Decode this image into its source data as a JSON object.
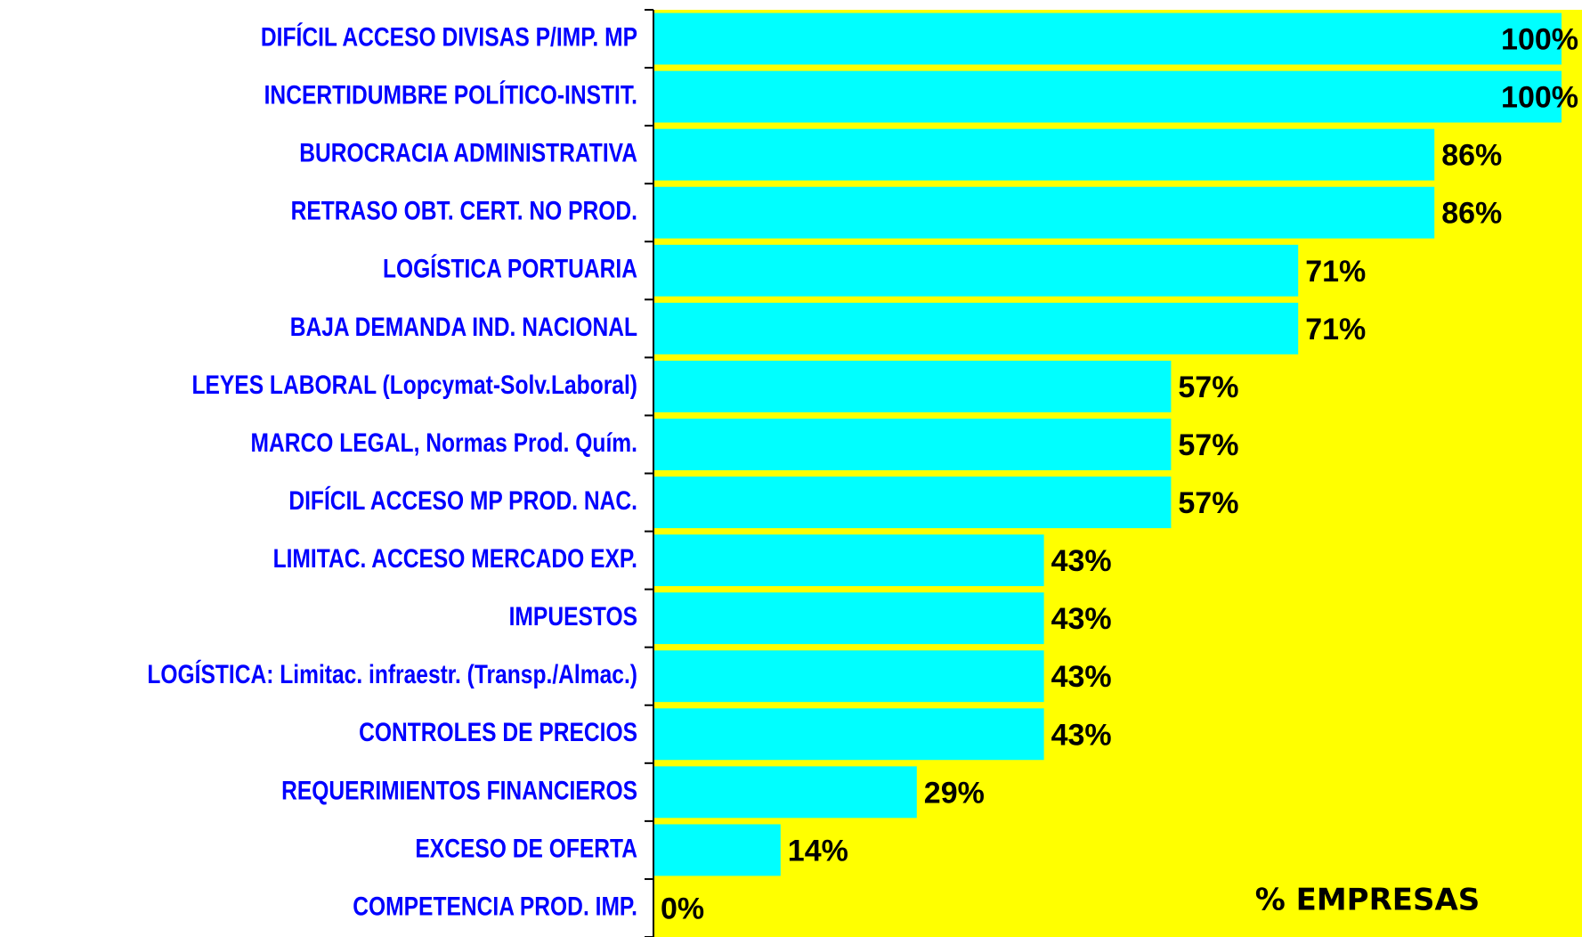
{
  "chart_data": {
    "type": "bar",
    "orientation": "horizontal",
    "categories": [
      "DIFÍCIL ACCESO DIVISAS P/IMP. MP",
      "INCERTIDUMBRE POLÍTICO-INSTIT.",
      "BUROCRACIA ADMINISTRATIVA",
      "RETRASO OBT. CERT. NO PROD.",
      "LOGÍSTICA PORTUARIA",
      "BAJA DEMANDA IND. NACIONAL",
      "LEYES LABORAL (Lopcymat-Solv.Laboral)",
      "MARCO LEGAL, Normas Prod. Quím.",
      "DIFÍCIL ACCESO MP PROD. NAC.",
      "LIMITAC. ACCESO MERCADO EXP.",
      "IMPUESTOS",
      "LOGÍSTICA: Limitac. infraestr. (Transp./Almac.)",
      "CONTROLES DE PRECIOS",
      "REQUERIMIENTOS FINANCIEROS",
      "EXCESO DE OFERTA",
      "COMPETENCIA PROD. IMP."
    ],
    "values": [
      100,
      100,
      86,
      86,
      71,
      71,
      57,
      57,
      57,
      43,
      43,
      43,
      43,
      29,
      14,
      0
    ],
    "value_labels": [
      "100%",
      "100%",
      "86%",
      "86%",
      "71%",
      "71%",
      "57%",
      "57%",
      "57%",
      "43%",
      "43%",
      "43%",
      "43%",
      "29%",
      "14%",
      "0%"
    ],
    "xlim": [
      0,
      100
    ],
    "color": "#00ffff",
    "background_color": "#ffff00",
    "category_label_color": "#0000ff",
    "annotation": "% EMPRESAS"
  }
}
